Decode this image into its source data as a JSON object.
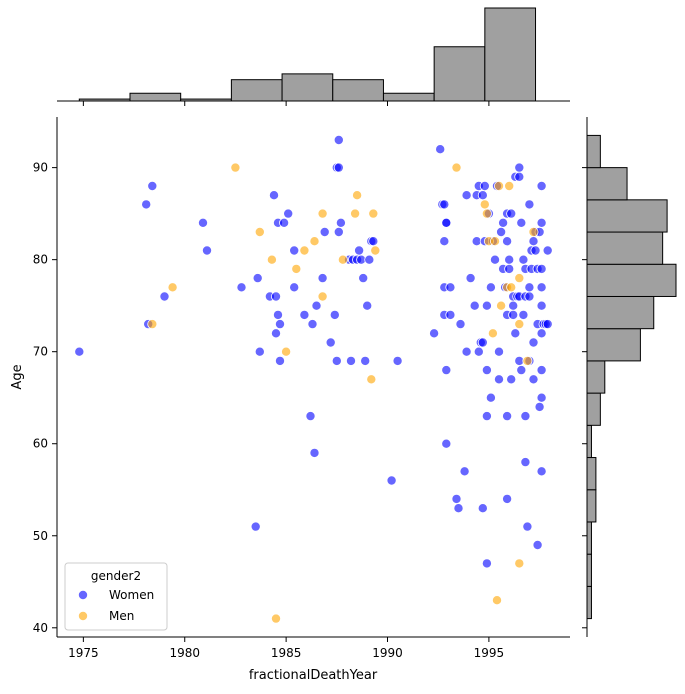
{
  "chart_data": {
    "type": "scatter",
    "title": "",
    "xlabel": "fractionalDeathYear",
    "ylabel": "Age",
    "xlim": [
      1973.7,
      1999.0
    ],
    "ylim": [
      39.0,
      95.5
    ],
    "x_ticks": [
      1975,
      1980,
      1985,
      1990,
      1995
    ],
    "y_ticks": [
      40,
      50,
      60,
      70,
      80,
      90
    ],
    "grid": false,
    "legend": {
      "title": "gender2",
      "placement": "lower-left",
      "entries": [
        "Women",
        "Men"
      ]
    },
    "series": [
      {
        "name": "Women",
        "color": "#0000ff",
        "points": [
          [
            1974.8,
            70
          ],
          [
            1978.1,
            86
          ],
          [
            1978.4,
            88
          ],
          [
            1978.2,
            73
          ],
          [
            1979.0,
            76
          ],
          [
            1980.9,
            84
          ],
          [
            1981.1,
            81
          ],
          [
            1982.8,
            77
          ],
          [
            1983.5,
            51
          ],
          [
            1983.6,
            78
          ],
          [
            1983.7,
            70
          ],
          [
            1984.2,
            76
          ],
          [
            1984.4,
            87
          ],
          [
            1984.5,
            76
          ],
          [
            1984.5,
            72
          ],
          [
            1984.6,
            74
          ],
          [
            1984.6,
            84
          ],
          [
            1984.7,
            73
          ],
          [
            1984.7,
            69
          ],
          [
            1984.9,
            84
          ],
          [
            1985.1,
            85
          ],
          [
            1985.4,
            81
          ],
          [
            1985.4,
            77
          ],
          [
            1985.9,
            74
          ],
          [
            1986.2,
            63
          ],
          [
            1986.3,
            73
          ],
          [
            1986.4,
            59
          ],
          [
            1986.5,
            75
          ],
          [
            1986.8,
            78
          ],
          [
            1986.9,
            83
          ],
          [
            1987.2,
            71
          ],
          [
            1987.4,
            74
          ],
          [
            1987.5,
            69
          ],
          [
            1987.5,
            90
          ],
          [
            1987.6,
            93
          ],
          [
            1987.6,
            90
          ],
          [
            1987.6,
            83
          ],
          [
            1987.7,
            84
          ],
          [
            1988.1,
            80
          ],
          [
            1988.2,
            69
          ],
          [
            1988.3,
            80
          ],
          [
            1988.5,
            80
          ],
          [
            1988.6,
            81
          ],
          [
            1988.7,
            80
          ],
          [
            1988.8,
            78
          ],
          [
            1988.9,
            69
          ],
          [
            1989.0,
            75
          ],
          [
            1989.1,
            80
          ],
          [
            1989.2,
            82
          ],
          [
            1989.3,
            82
          ],
          [
            1990.2,
            56
          ],
          [
            1990.5,
            69
          ],
          [
            1992.3,
            72
          ],
          [
            1992.6,
            92
          ],
          [
            1992.7,
            86
          ],
          [
            1992.8,
            86
          ],
          [
            1992.8,
            77
          ],
          [
            1992.8,
            74
          ],
          [
            1992.9,
            84
          ],
          [
            1992.9,
            84
          ],
          [
            1992.8,
            82
          ],
          [
            1992.9,
            68
          ],
          [
            1992.9,
            60
          ],
          [
            1993.1,
            74
          ],
          [
            1993.1,
            77
          ],
          [
            1993.4,
            54
          ],
          [
            1993.5,
            53
          ],
          [
            1993.6,
            73
          ],
          [
            1993.8,
            57
          ],
          [
            1993.9,
            87
          ],
          [
            1993.9,
            70
          ],
          [
            1994.1,
            78
          ],
          [
            1994.3,
            75
          ],
          [
            1994.4,
            87
          ],
          [
            1994.4,
            82
          ],
          [
            1994.5,
            88
          ],
          [
            1994.5,
            70
          ],
          [
            1994.6,
            71
          ],
          [
            1994.7,
            53
          ],
          [
            1994.7,
            87
          ],
          [
            1994.7,
            71
          ],
          [
            1994.8,
            88
          ],
          [
            1994.8,
            82
          ],
          [
            1994.9,
            47
          ],
          [
            1994.9,
            75
          ],
          [
            1994.9,
            63
          ],
          [
            1994.9,
            68
          ],
          [
            1995.0,
            85
          ],
          [
            1995.1,
            65
          ],
          [
            1995.1,
            77
          ],
          [
            1995.2,
            82
          ],
          [
            1995.3,
            80
          ],
          [
            1995.4,
            88
          ],
          [
            1995.5,
            67
          ],
          [
            1995.5,
            70
          ],
          [
            1995.6,
            83
          ],
          [
            1995.7,
            84
          ],
          [
            1995.7,
            79
          ],
          [
            1995.8,
            77
          ],
          [
            1995.9,
            85
          ],
          [
            1995.9,
            82
          ],
          [
            1995.9,
            63
          ],
          [
            1995.9,
            54
          ],
          [
            1995.9,
            74
          ],
          [
            1996.0,
            80
          ],
          [
            1996.0,
            79
          ],
          [
            1996.1,
            67
          ],
          [
            1996.1,
            85
          ],
          [
            1996.2,
            76
          ],
          [
            1996.2,
            75
          ],
          [
            1996.2,
            74
          ],
          [
            1996.3,
            89
          ],
          [
            1996.3,
            72
          ],
          [
            1996.4,
            76
          ],
          [
            1996.5,
            89
          ],
          [
            1996.5,
            90
          ],
          [
            1996.5,
            69
          ],
          [
            1996.5,
            76
          ],
          [
            1996.6,
            68
          ],
          [
            1996.6,
            84
          ],
          [
            1996.7,
            80
          ],
          [
            1996.7,
            74
          ],
          [
            1996.8,
            79
          ],
          [
            1996.8,
            58
          ],
          [
            1996.8,
            76
          ],
          [
            1996.8,
            63
          ],
          [
            1996.9,
            51
          ],
          [
            1997.0,
            86
          ],
          [
            1997.0,
            76
          ],
          [
            1997.0,
            77
          ],
          [
            1997.0,
            69
          ],
          [
            1997.1,
            81
          ],
          [
            1997.1,
            79
          ],
          [
            1997.2,
            82
          ],
          [
            1997.2,
            67
          ],
          [
            1997.2,
            71
          ],
          [
            1997.3,
            83
          ],
          [
            1997.3,
            81
          ],
          [
            1997.4,
            49
          ],
          [
            1997.4,
            73
          ],
          [
            1997.4,
            79
          ],
          [
            1997.5,
            64
          ],
          [
            1997.5,
            83
          ],
          [
            1997.6,
            88
          ],
          [
            1997.6,
            84
          ],
          [
            1997.6,
            79
          ],
          [
            1997.6,
            77
          ],
          [
            1997.6,
            75
          ],
          [
            1997.6,
            72
          ],
          [
            1997.6,
            68
          ],
          [
            1997.6,
            65
          ],
          [
            1997.6,
            57
          ],
          [
            1997.7,
            73
          ],
          [
            1997.8,
            73
          ],
          [
            1997.9,
            73
          ],
          [
            1997.9,
            81
          ]
        ]
      },
      {
        "name": "Men",
        "color": "#ffa500",
        "points": [
          [
            1978.4,
            73
          ],
          [
            1979.4,
            77
          ],
          [
            1982.5,
            90
          ],
          [
            1983.7,
            83
          ],
          [
            1984.3,
            80
          ],
          [
            1984.5,
            41
          ],
          [
            1985.0,
            70
          ],
          [
            1985.5,
            79
          ],
          [
            1985.9,
            81
          ],
          [
            1986.4,
            82
          ],
          [
            1986.8,
            85
          ],
          [
            1986.8,
            76
          ],
          [
            1987.8,
            80
          ],
          [
            1988.4,
            85
          ],
          [
            1988.5,
            87
          ],
          [
            1989.2,
            67
          ],
          [
            1989.3,
            85
          ],
          [
            1989.4,
            81
          ],
          [
            1993.4,
            90
          ],
          [
            1994.8,
            86
          ],
          [
            1994.9,
            85
          ],
          [
            1995.0,
            82
          ],
          [
            1995.2,
            72
          ],
          [
            1995.3,
            82
          ],
          [
            1995.4,
            43
          ],
          [
            1995.5,
            88
          ],
          [
            1995.6,
            75
          ],
          [
            1995.9,
            77
          ],
          [
            1996.0,
            88
          ],
          [
            1996.1,
            77
          ],
          [
            1996.5,
            78
          ],
          [
            1996.5,
            73
          ],
          [
            1996.5,
            47
          ],
          [
            1996.9,
            69
          ],
          [
            1997.2,
            83
          ]
        ]
      }
    ],
    "marginal_x_hist": {
      "bin_edges": [
        1974.8,
        1977.3,
        1979.8,
        1982.3,
        1984.8,
        1987.3,
        1989.8,
        1992.3,
        1994.8,
        1997.3,
        1999.8
      ],
      "counts": [
        1,
        4,
        1,
        11,
        14,
        11,
        4,
        28,
        48,
        0
      ]
    },
    "marginal_y_hist": {
      "bin_edges": [
        41,
        44.5,
        48,
        51.5,
        55,
        58.5,
        62,
        65.5,
        69,
        72.5,
        76,
        79.5,
        83,
        86.5,
        90,
        93.5
      ],
      "counts": [
        1,
        1,
        1,
        2,
        2,
        1,
        3,
        4,
        12,
        15,
        20,
        17,
        18,
        9,
        3
      ]
    }
  }
}
